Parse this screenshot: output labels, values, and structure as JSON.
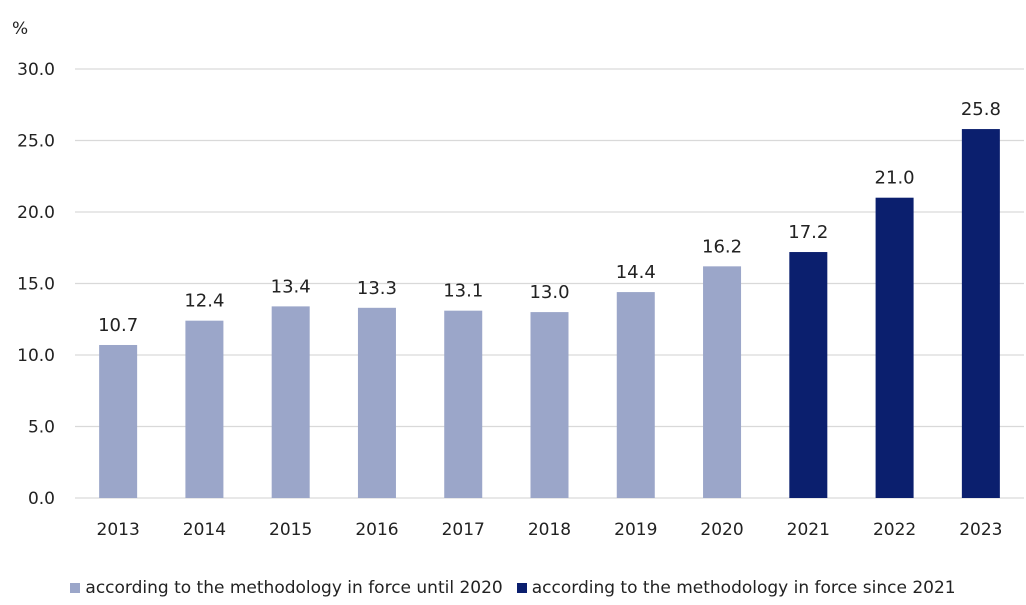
{
  "chart_data": {
    "type": "bar",
    "unit_label": "%",
    "categories": [
      "2013",
      "2014",
      "2015",
      "2016",
      "2017",
      "2018",
      "2019",
      "2020",
      "2021",
      "2022",
      "2023"
    ],
    "series": [
      {
        "name": "according to the methodology in force until 2020",
        "color": "#9ba6c9",
        "values": [
          10.7,
          12.4,
          13.4,
          13.3,
          13.1,
          13.0,
          14.4,
          16.2,
          null,
          null,
          null
        ]
      },
      {
        "name": "according to the methodology in force since 2021",
        "color": "#0b1f6e",
        "values": [
          null,
          null,
          null,
          null,
          null,
          null,
          null,
          null,
          17.2,
          21.0,
          25.8
        ]
      }
    ],
    "value_labels": [
      "10.7",
      "12.4",
      "13.4",
      "13.3",
      "13.1",
      "13.0",
      "14.4",
      "16.2",
      "17.2",
      "21.0",
      "25.8"
    ],
    "y_ticks": [
      "0.0",
      "5.0",
      "10.0",
      "15.0",
      "20.0",
      "25.0",
      "30.0"
    ],
    "ylim": [
      0,
      30
    ],
    "grid": true,
    "legend_position": "bottom"
  }
}
